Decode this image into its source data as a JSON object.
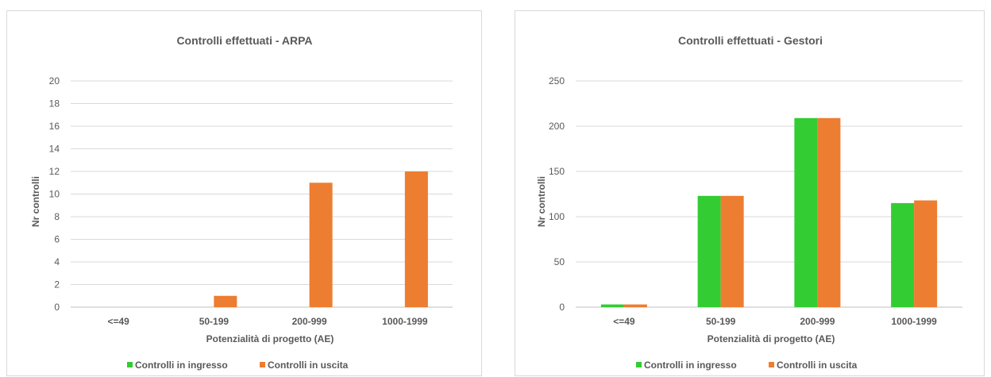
{
  "colors": {
    "ingresso": "#33cc33",
    "uscita": "#ed7d31",
    "grid": "#d9d9d9",
    "text": "#595959"
  },
  "chart_data": [
    {
      "type": "bar",
      "title": "Controlli effettuati - ARPA",
      "xlabel": "Potenzialità di progetto (AE)",
      "ylabel": "Nr controlli",
      "categories": [
        "<=49",
        "50-199",
        "200-999",
        "1000-1999"
      ],
      "ylim": [
        0,
        20
      ],
      "yticks": [
        0,
        2,
        4,
        6,
        8,
        10,
        12,
        14,
        16,
        18,
        20
      ],
      "grid": true,
      "legend": "bottom",
      "series": [
        {
          "name": "Controlli in ingresso",
          "values": [
            0,
            0,
            0,
            0
          ]
        },
        {
          "name": "Controlli in uscita",
          "values": [
            0,
            1,
            11,
            12
          ]
        }
      ]
    },
    {
      "type": "bar",
      "title": "Controlli effettuati - Gestori",
      "xlabel": "Potenzialità di progetto (AE)",
      "ylabel": "Nr controlli",
      "categories": [
        "<=49",
        "50-199",
        "200-999",
        "1000-1999"
      ],
      "ylim": [
        0,
        250
      ],
      "yticks": [
        0,
        50,
        100,
        150,
        200,
        250
      ],
      "grid": true,
      "legend": "bottom",
      "series": [
        {
          "name": "Controlli in ingresso",
          "values": [
            3,
            123,
            209,
            115
          ]
        },
        {
          "name": "Controlli in uscita",
          "values": [
            3,
            123,
            209,
            118
          ]
        }
      ]
    }
  ]
}
